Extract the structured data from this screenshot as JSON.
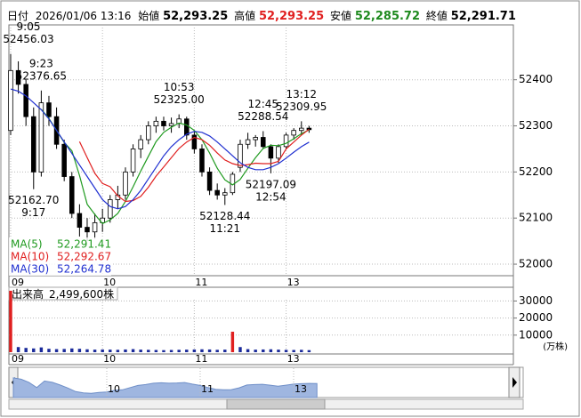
{
  "header": {
    "date_label": "日付",
    "datetime": "2026/01/06 13:16",
    "open_label": "始値",
    "open": "52,293.25",
    "high_label": "高値",
    "high": "52,293.25",
    "low_label": "安値",
    "low": "52,285.72",
    "close_label": "終値",
    "close": "52,291.71"
  },
  "chart_data": [
    {
      "type": "candlestick",
      "x": [
        0,
        1,
        2,
        3,
        4,
        5,
        6,
        7,
        8,
        9,
        10,
        11,
        12,
        13,
        14,
        15,
        16,
        17,
        18,
        19,
        20,
        21,
        22,
        23,
        24,
        25,
        26,
        27,
        28,
        29,
        30,
        31,
        32,
        33,
        34,
        35,
        36,
        37,
        38,
        39
      ],
      "open": [
        52290,
        52420,
        52390,
        52320,
        52200,
        52350,
        52320,
        52260,
        52190,
        52110,
        52080,
        52070,
        52090,
        52100,
        52140,
        52150,
        52200,
        52250,
        52270,
        52300,
        52310,
        52300,
        52305,
        52315,
        52280,
        52250,
        52200,
        52160,
        52150,
        52155,
        52210,
        52260,
        52270,
        52275,
        52255,
        52230,
        52255,
        52280,
        52290,
        52295
      ],
      "high": [
        52456.03,
        52440,
        52400,
        52340,
        52376.65,
        52365,
        52340,
        52270,
        52200,
        52130,
        52100,
        52110,
        52120,
        52150,
        52170,
        52210,
        52260,
        52280,
        52310,
        52320,
        52320,
        52318,
        52325.0,
        52320,
        52290,
        52260,
        52210,
        52175,
        52165,
        52200,
        52270,
        52285,
        52280,
        52288.54,
        52260,
        52260,
        52285,
        52295,
        52309.95,
        52300
      ],
      "low": [
        52280,
        52370,
        52300,
        52162.7,
        52190,
        52300,
        52250,
        52180,
        52100,
        52060,
        52050,
        52055,
        52070,
        52090,
        52120,
        52140,
        52190,
        52230,
        52260,
        52285,
        52290,
        52285,
        52295,
        52270,
        52240,
        52190,
        52150,
        52140,
        52128.44,
        52150,
        52200,
        52250,
        52255,
        52250,
        52197.09,
        52220,
        52250,
        52270,
        52280,
        52285
      ],
      "close": [
        52420,
        52390,
        52320,
        52200,
        52350,
        52320,
        52260,
        52190,
        52110,
        52080,
        52070,
        52090,
        52100,
        52140,
        52150,
        52200,
        52250,
        52270,
        52300,
        52310,
        52300,
        52305,
        52315,
        52280,
        52250,
        52200,
        52160,
        52150,
        52155,
        52195,
        52260,
        52270,
        52275,
        52255,
        52230,
        52255,
        52280,
        52290,
        52295,
        52291.71
      ],
      "up_color": "#ffffff",
      "down_color": "#000000",
      "series": [
        {
          "name": "MA(5)",
          "color": "#1f9a1f",
          "last_label": "52,291.41",
          "values": [
            null,
            null,
            null,
            null,
            52336,
            52316,
            52290,
            52264,
            52246,
            52192,
            52130,
            52108,
            52088,
            52096,
            52110,
            52136,
            52168,
            52202,
            52234,
            52266,
            52286,
            52297,
            52306,
            52302,
            52290,
            52270,
            52241,
            52208,
            52183,
            52172,
            52184,
            52208,
            52231,
            52251,
            52258,
            52257,
            52262,
            52272,
            52283,
            52291.41
          ]
        },
        {
          "name": "MA(10)",
          "color": "#e02020",
          "last_label": "52,292.67",
          "values": [
            null,
            null,
            null,
            null,
            null,
            null,
            null,
            null,
            null,
            52266,
            52231,
            52197,
            52175,
            52168,
            52148,
            52136,
            52138,
            52147,
            52167,
            52191,
            52211,
            52231,
            52251,
            52265,
            52275,
            52270,
            52258,
            52241,
            52226,
            52218,
            52214,
            52216,
            52219,
            52218,
            52218,
            52223,
            52250,
            52265,
            52280,
            52292.67
          ]
        },
        {
          "name": "MA(30)",
          "color": "#2030d0",
          "last_label": "52,264.78",
          "values": [
            52380,
            52375,
            52365,
            52350,
            52335,
            52315,
            52290,
            52265,
            52240,
            52215,
            52190,
            52165,
            52140,
            52125,
            52120,
            52125,
            52140,
            52160,
            52185,
            52210,
            52235,
            52255,
            52270,
            52282,
            52288,
            52286,
            52278,
            52265,
            52250,
            52235,
            52220,
            52210,
            52205,
            52205,
            52210,
            52218,
            52230,
            52243,
            52255,
            52264.78
          ]
        }
      ],
      "annotations": [
        {
          "time": "9:05",
          "x": 0,
          "value": 52456.03
        },
        {
          "time": "9:23",
          "x": 4,
          "value": 52376.65
        },
        {
          "time": "9:17",
          "x": 3,
          "value": {
            "value": 52162.7,
            "label": "52162.70"
          }
        },
        {
          "time": "10:53",
          "x": 22,
          "value": {
            "value": 52325.0,
            "label": "52325.00"
          }
        },
        {
          "time": "11:21",
          "x": 28,
          "value": 52128.44
        },
        {
          "time": "12:45",
          "x": 33,
          "value": 52288.54
        },
        {
          "time": "12:54",
          "x": 34,
          "value": 52197.09
        },
        {
          "time": "13:12",
          "x": 38,
          "value": 52309.95
        }
      ],
      "xlim": [
        -0.23,
        65.7
      ],
      "xticks": [
        {
          "value": 0,
          "label": "09"
        },
        {
          "value": 12,
          "label": "10"
        },
        {
          "value": 24,
          "label": "11"
        },
        {
          "value": 36,
          "label": "13"
        }
      ],
      "ylim": [
        51975,
        52519
      ],
      "yticks": [
        52000,
        52100,
        52200,
        52300,
        52400
      ],
      "grid": true
    },
    {
      "type": "bar",
      "title": "出来高",
      "current_label": "2,499,600株",
      "unit": "(万株)",
      "color": "#1a2a9a",
      "x": [
        0,
        1,
        2,
        3,
        4,
        5,
        6,
        7,
        8,
        9,
        10,
        11,
        12,
        13,
        14,
        15,
        16,
        17,
        18,
        19,
        20,
        21,
        22,
        23,
        24,
        25,
        26,
        27,
        28,
        29,
        30,
        31,
        32,
        33,
        34,
        35,
        36,
        37,
        38,
        39
      ],
      "values": [
        36000,
        3000,
        2500,
        2200,
        2800,
        2000,
        1800,
        1900,
        2200,
        2000,
        1700,
        1500,
        1600,
        1500,
        1400,
        1600,
        1800,
        1500,
        1400,
        1300,
        1200,
        1300,
        1400,
        1500,
        1600,
        1700,
        1600,
        1400,
        1500,
        12000,
        3000,
        1800,
        1500,
        1600,
        1700,
        1500,
        1400,
        1300,
        1400,
        1200
      ],
      "xlim": [
        -0.23,
        65.7
      ],
      "xticks": [
        {
          "value": 0,
          "label": "09"
        },
        {
          "value": 12,
          "label": "10"
        },
        {
          "value": 24,
          "label": "11"
        },
        {
          "value": 36,
          "label": "13"
        }
      ],
      "ylim": [
        0,
        37000
      ],
      "yticks": [
        10000,
        20000,
        30000
      ],
      "grid": true
    },
    {
      "type": "area",
      "color": "#9fb6e0",
      "x": [
        0,
        1,
        2,
        3,
        4,
        5,
        6,
        7,
        8,
        9,
        10,
        11,
        12,
        13,
        14,
        15,
        16,
        17,
        18,
        19,
        20,
        21,
        22,
        23,
        24,
        25,
        26,
        27,
        28,
        29,
        30,
        31,
        32,
        33,
        34,
        35,
        36,
        37,
        38,
        39
      ],
      "values": [
        52420,
        52390,
        52320,
        52200,
        52350,
        52320,
        52260,
        52190,
        52110,
        52080,
        52070,
        52090,
        52100,
        52140,
        52150,
        52200,
        52250,
        52270,
        52300,
        52310,
        52300,
        52305,
        52315,
        52280,
        52250,
        52200,
        52160,
        52150,
        52155,
        52195,
        52260,
        52270,
        52275,
        52255,
        52230,
        52255,
        52280,
        52290,
        52295,
        52291.71
      ],
      "xlim": [
        0.57,
        63.66
      ],
      "xticks": [
        {
          "value": 12,
          "label": "10"
        },
        {
          "value": 24,
          "label": "11"
        },
        {
          "value": 36,
          "label": "13"
        }
      ],
      "ylim": [
        51975,
        52519
      ]
    }
  ]
}
